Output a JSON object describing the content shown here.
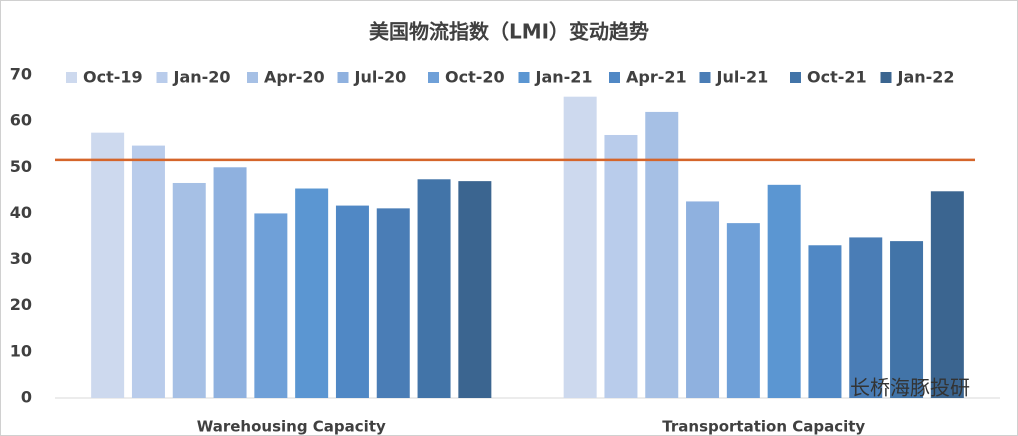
{
  "chart_data": {
    "type": "bar",
    "title": "美国物流指数（LMI）变动趋势",
    "categories": [
      "Warehousing Capacity",
      "Transportation Capacity"
    ],
    "series": [
      {
        "name": "Oct-19",
        "color": "#cdd9ee",
        "values": [
          57.5,
          65.3
        ]
      },
      {
        "name": "Jan-20",
        "color": "#b9cceb",
        "values": [
          54.7,
          57.0
        ]
      },
      {
        "name": "Apr-20",
        "color": "#a6c0e5",
        "values": [
          46.6,
          62.0
        ]
      },
      {
        "name": "Jul-20",
        "color": "#8fb1df",
        "values": [
          50.0,
          42.6
        ]
      },
      {
        "name": "Oct-20",
        "color": "#6fa0d8",
        "values": [
          40.0,
          37.9
        ]
      },
      {
        "name": "Jan-21",
        "color": "#5b96d2",
        "values": [
          45.4,
          46.2
        ]
      },
      {
        "name": "Apr-21",
        "color": "#5088c5",
        "values": [
          41.7,
          33.1
        ]
      },
      {
        "name": "Jul-21",
        "color": "#4a7db6",
        "values": [
          41.1,
          34.8
        ]
      },
      {
        "name": "Oct-21",
        "color": "#4274a8",
        "values": [
          47.4,
          34.0
        ]
      },
      {
        "name": "Jan-22",
        "color": "#3b6590",
        "values": [
          47.0,
          44.8
        ]
      }
    ],
    "reference_line": {
      "value": 51.6,
      "color": "#d5652a"
    },
    "ylim": [
      0,
      70
    ],
    "yticks": [
      0,
      10,
      20,
      30,
      40,
      50,
      60,
      70
    ],
    "grid": false,
    "legend": "top",
    "watermark": "长桥海豚投研"
  }
}
